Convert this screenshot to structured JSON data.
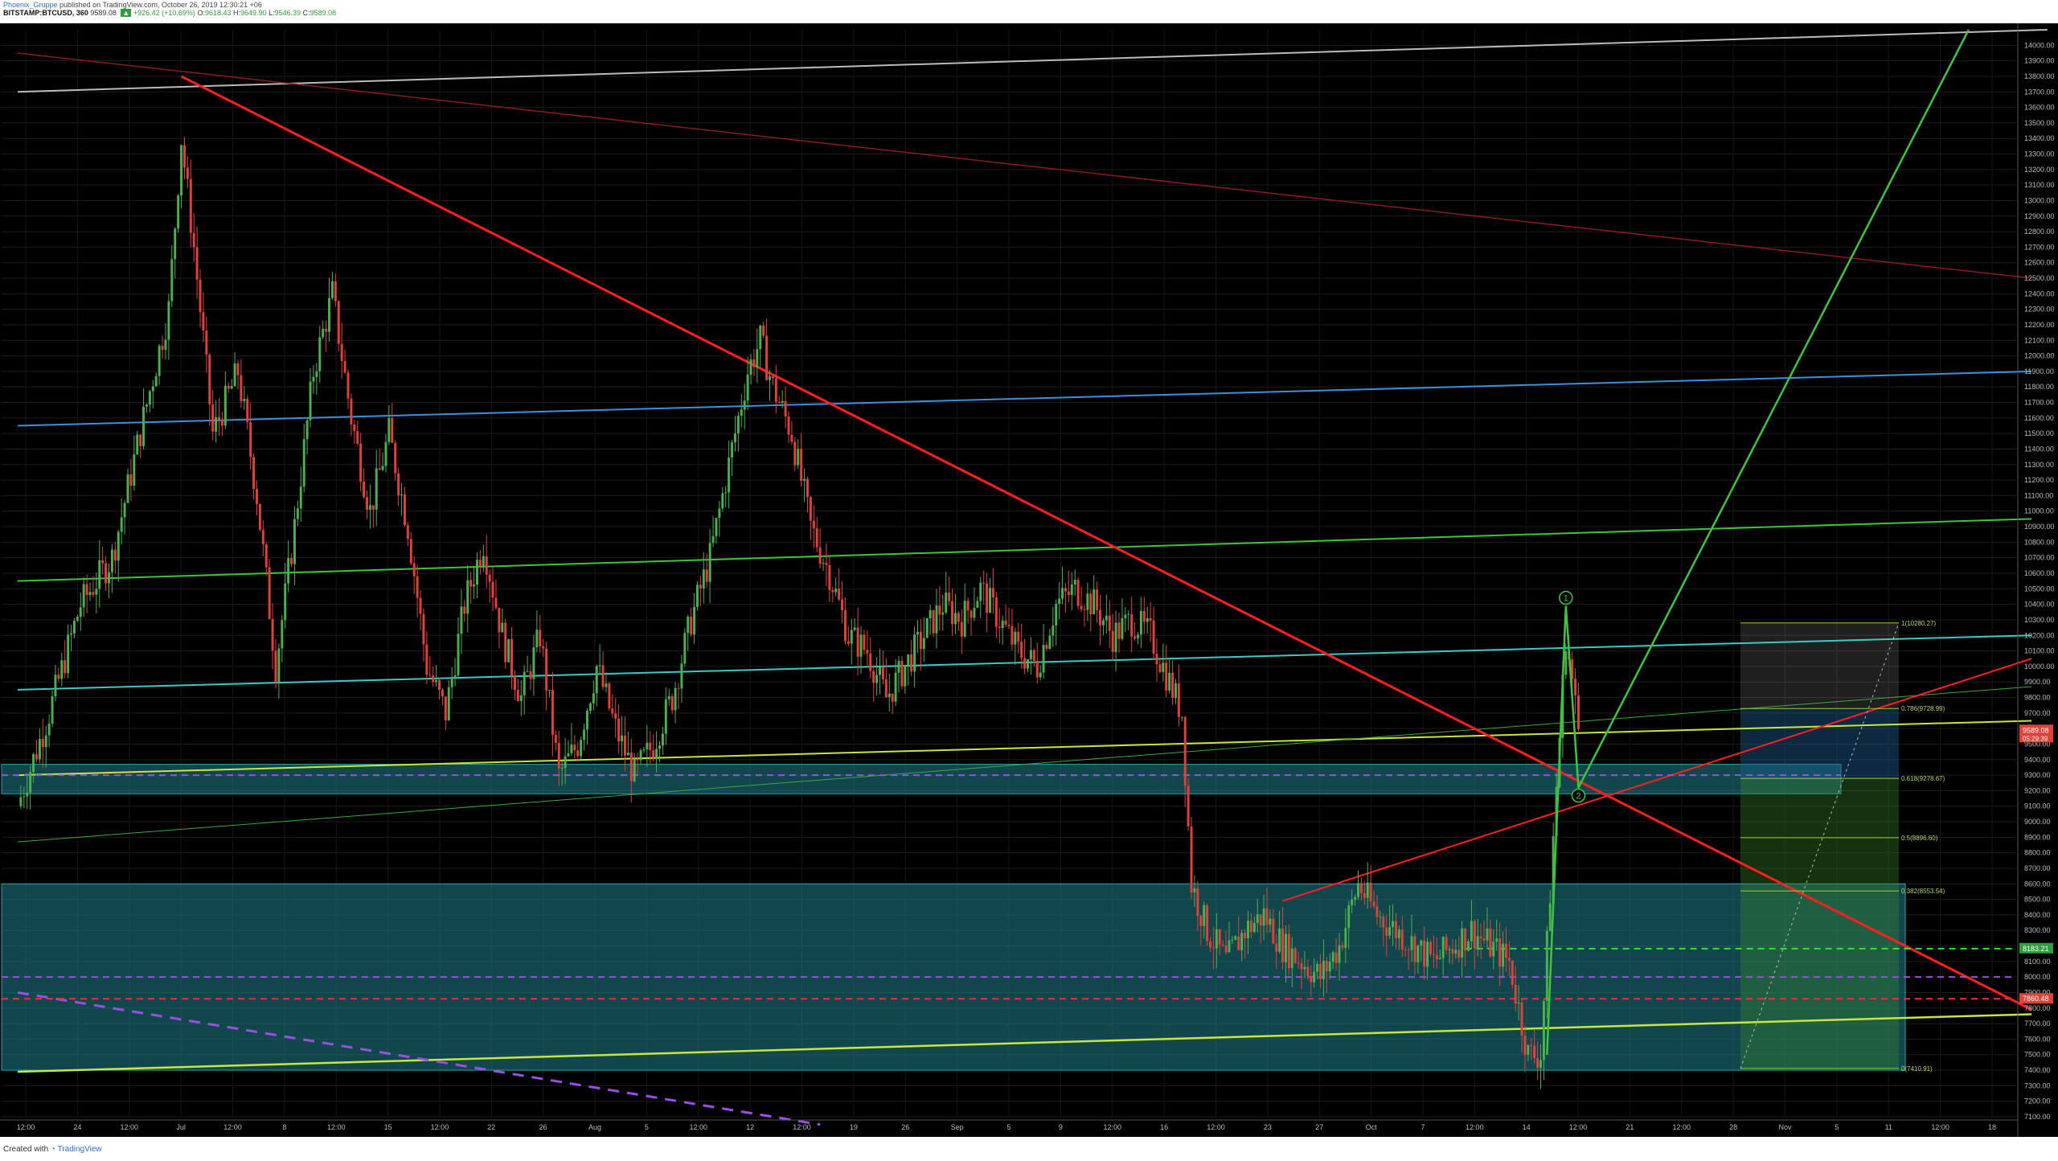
{
  "header": {
    "author": "Phoenix_Gruppe",
    "published_text": "published on TradingView.com, October 26, 2019 12:30:21 +06",
    "symbol": "BITSTAMP:BTCUSD, 360",
    "price": "9589.08",
    "change": "+926.42 (+10.69%)",
    "ohlc": [
      {
        "label": "O:",
        "value": "9618.43"
      },
      {
        "label": "H:",
        "value": "9649.90"
      },
      {
        "label": "L:",
        "value": "9546.39"
      },
      {
        "label": "C:",
        "value": "9589.08"
      }
    ]
  },
  "footer": {
    "created_with": "Created with",
    "brand": "TradingView"
  },
  "colors": {
    "background": "#000000",
    "up": "#4caf50",
    "down": "#e0413a",
    "zone": "#1e7f8a",
    "resistance": "#ff1f1f",
    "support_yellow": "#c8e63c",
    "channel_blue": "#3f8fdc",
    "channel_green": "#3ec43e",
    "channel_teal": "#3dc9c4",
    "grey_line": "#bbbbbb",
    "dashed_purple": "#9a4fe0",
    "dashed_red": "#ff2a2a",
    "dashed_green": "#2ee62e"
  },
  "chart_data": {
    "type": "candlestick",
    "symbol": "BITSTAMP:BTCUSD",
    "timeframe": "360",
    "ylim": [
      7100,
      14100
    ],
    "y_ticks": [
      7100,
      7200,
      7300,
      7400,
      7500,
      7600,
      7700,
      7800,
      7900,
      8000,
      8100,
      8200,
      8300,
      8400,
      8500,
      8600,
      8700,
      8800,
      8900,
      9000,
      9100,
      9200,
      9300,
      9400,
      9500,
      9600,
      9700,
      9800,
      9900,
      10000,
      10100,
      10200,
      10300,
      10400,
      10500,
      10600,
      10700,
      10800,
      10900,
      11000,
      11100,
      11200,
      11300,
      11400,
      11500,
      11600,
      11700,
      11800,
      11900,
      12000,
      12100,
      12200,
      12300,
      12400,
      12500,
      12600,
      12700,
      12800,
      12900,
      13000,
      13100,
      13200,
      13300,
      13400,
      13500,
      13600,
      13700,
      13800,
      13900,
      14000
    ],
    "x_labels": [
      "12:00",
      "24",
      "12:00",
      "Jul",
      "12:00",
      "8",
      "12:00",
      "15",
      "12:00",
      "22",
      "26",
      "Aug",
      "5",
      "12:00",
      "12",
      "12:00",
      "19",
      "26",
      "Sep",
      "5",
      "9",
      "12:00",
      "16",
      "12:00",
      "23",
      "27",
      "Oct",
      "7",
      "12:00",
      "14",
      "12:00",
      "21",
      "12:00",
      "28",
      "Nov",
      "5",
      "11",
      "12:00",
      "18"
    ],
    "price_path": [
      [
        0,
        9100
      ],
      [
        10,
        9700
      ],
      [
        20,
        10400
      ],
      [
        30,
        10700
      ],
      [
        40,
        11600
      ],
      [
        48,
        12300
      ],
      [
        52,
        13400
      ],
      [
        56,
        12700
      ],
      [
        62,
        11500
      ],
      [
        70,
        11900
      ],
      [
        76,
        11100
      ],
      [
        82,
        10000
      ],
      [
        88,
        10900
      ],
      [
        94,
        11900
      ],
      [
        100,
        12400
      ],
      [
        106,
        11600
      ],
      [
        112,
        11000
      ],
      [
        118,
        11500
      ],
      [
        124,
        10900
      ],
      [
        130,
        10000
      ],
      [
        136,
        9700
      ],
      [
        142,
        10400
      ],
      [
        148,
        10800
      ],
      [
        154,
        10200
      ],
      [
        160,
        9800
      ],
      [
        166,
        10200
      ],
      [
        172,
        9300
      ],
      [
        178,
        9500
      ],
      [
        184,
        10000
      ],
      [
        190,
        9600
      ],
      [
        196,
        9300
      ],
      [
        202,
        9500
      ],
      [
        208,
        9800
      ],
      [
        214,
        10300
      ],
      [
        220,
        10700
      ],
      [
        226,
        11300
      ],
      [
        232,
        11900
      ],
      [
        236,
        12100
      ],
      [
        240,
        11800
      ],
      [
        246,
        11500
      ],
      [
        252,
        10900
      ],
      [
        258,
        10600
      ],
      [
        264,
        10200
      ],
      [
        270,
        10100
      ],
      [
        276,
        9800
      ],
      [
        282,
        10000
      ],
      [
        288,
        10200
      ],
      [
        294,
        10400
      ],
      [
        300,
        10300
      ],
      [
        306,
        10500
      ],
      [
        312,
        10300
      ],
      [
        318,
        10100
      ],
      [
        324,
        10000
      ],
      [
        330,
        10400
      ],
      [
        336,
        10500
      ],
      [
        342,
        10400
      ],
      [
        348,
        10200
      ],
      [
        354,
        10300
      ],
      [
        360,
        10200
      ],
      [
        366,
        9900
      ],
      [
        370,
        9700
      ],
      [
        373,
        8600
      ],
      [
        378,
        8300
      ],
      [
        384,
        8100
      ],
      [
        390,
        8300
      ],
      [
        396,
        8400
      ],
      [
        402,
        8200
      ],
      [
        408,
        8100
      ],
      [
        414,
        8000
      ],
      [
        420,
        8200
      ],
      [
        426,
        8600
      ],
      [
        432,
        8400
      ],
      [
        438,
        8300
      ],
      [
        444,
        8200
      ],
      [
        450,
        8100
      ],
      [
        456,
        8200
      ],
      [
        462,
        8300
      ],
      [
        468,
        8200
      ],
      [
        474,
        8100
      ],
      [
        480,
        7500
      ],
      [
        484,
        7500
      ],
      [
        488,
        8900
      ],
      [
        492,
        10200
      ],
      [
        496,
        9600
      ]
    ],
    "price_badges": [
      {
        "label": "9589.08",
        "sub": "05:29:39",
        "value": 9589
      },
      {
        "label": "8183.21",
        "value": 8183
      },
      {
        "label": "7860.48",
        "value": 7860
      }
    ],
    "fib_levels": [
      {
        "label": "1(10280.27)",
        "value": 10280
      },
      {
        "label": "0.786(9728.99)",
        "value": 9729
      },
      {
        "label": "0.618(9278.67)",
        "value": 9279
      },
      {
        "label": "0.5(8896.60)",
        "value": 8897
      },
      {
        "label": "0.382(8553.54)",
        "value": 8554
      },
      {
        "label": "0(7410.91)",
        "value": 7411
      }
    ],
    "wave_labels": [
      {
        "label": "1",
        "value": 10390
      },
      {
        "label": "2",
        "value": 9220
      }
    ],
    "zones": [
      {
        "name": "upper-demand-zone",
        "from": 9180,
        "to": 9370
      },
      {
        "name": "lower-demand-zone",
        "from": 7400,
        "to": 8600
      }
    ]
  }
}
